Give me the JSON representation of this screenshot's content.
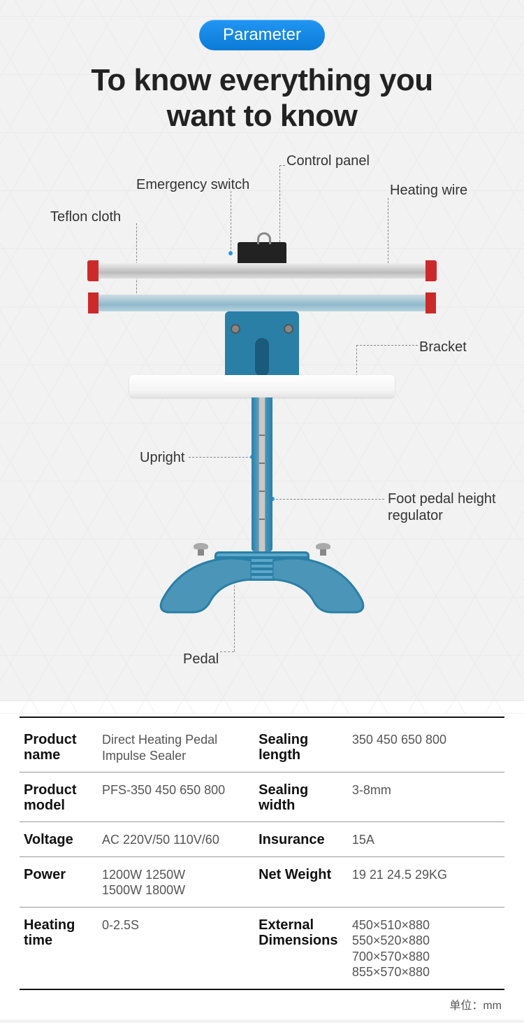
{
  "header": {
    "badge": "Parameter",
    "headline_l1": "To know everything you",
    "headline_l2": "want to know"
  },
  "callouts": {
    "control_panel": "Control panel",
    "emergency_switch": "Emergency switch",
    "heating_wire": "Heating wire",
    "teflon_cloth": "Teflon cloth",
    "bracket": "Bracket",
    "upright": "Upright",
    "foot_pedal_height": "Foot pedal height regulator",
    "pedal": "Pedal"
  },
  "colors": {
    "badge_grad_top": "#2196f3",
    "badge_grad_bot": "#0b7bd6",
    "machine_blue": "#2a7fa6",
    "machine_blue_light": "#5ba8c9",
    "red_cap": "#cc2a2a",
    "callout_dot": "#2196f3",
    "bg": "#f2f2f2",
    "hex_line": "#e6e6e6",
    "text_dark": "#222",
    "text_mid": "#555",
    "rule": "#999"
  },
  "specs": {
    "rows": [
      {
        "label1": "Product",
        "label1b": "name",
        "value1": "Direct Heating Pedal Impulse Sealer",
        "label2": "Sealing",
        "label2b": "length",
        "value2": "350  450  650  800"
      },
      {
        "label1": "Product",
        "label1b": "model",
        "value1": "PFS-350  450  650  800",
        "label2": "Sealing",
        "label2b": "width",
        "value2": "3-8mm"
      },
      {
        "label1": "Voltage",
        "label1b": "",
        "value1": "AC 220V/50   110V/60",
        "label2": "Insurance",
        "label2b": "",
        "value2": "15A"
      },
      {
        "label1": "Power",
        "label1b": "",
        "value1": "1200W   1250W\n1500W   1800W",
        "label2": "Net Weight",
        "label2b": "",
        "value2": "19  21  24.5  29KG"
      },
      {
        "label1": "Heating",
        "label1b": "time",
        "value1": "0-2.5S",
        "label2": "External",
        "label2b": "Dimensions",
        "value2": "450×510×880\n550×520×880\n700×570×880\n855×570×880"
      }
    ],
    "unit_note": "单位：mm"
  }
}
